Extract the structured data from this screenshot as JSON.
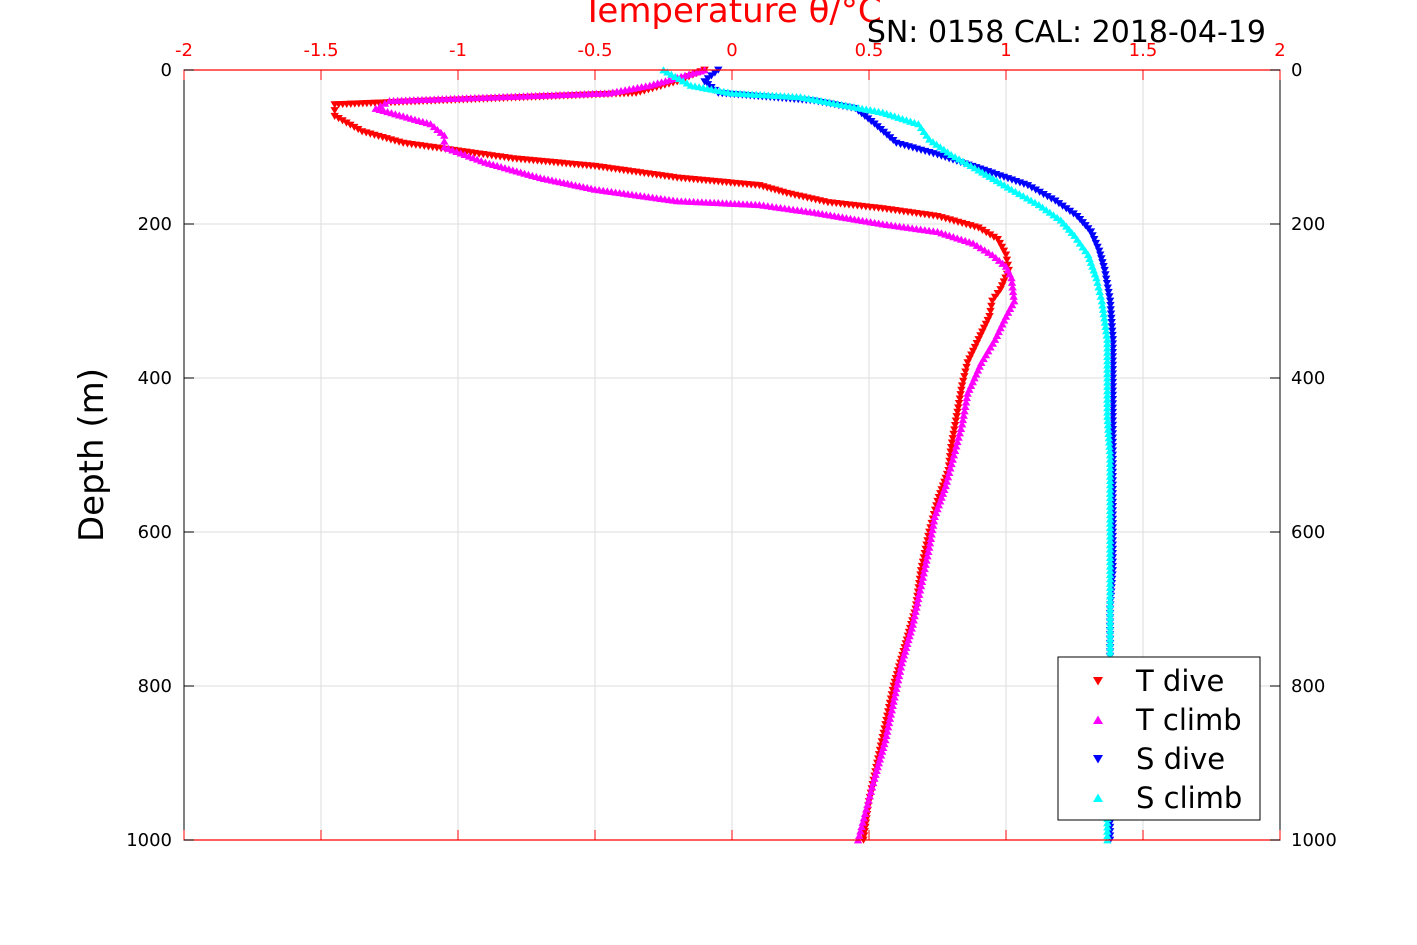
{
  "header": {
    "top_axis_title": "Temperature θ/°C",
    "y_axis_title": "Depth (m)",
    "serial_cal": "SN: 0158  CAL: 2018-04-19"
  },
  "colors": {
    "temperature_axis": "#ff0000",
    "t_dive": "#ff0000",
    "t_climb": "#ff00ff",
    "s_dive": "#0000ff",
    "s_climb": "#00ffff",
    "grid": "#dddddd"
  },
  "chart_data": {
    "type": "scatter",
    "x_axis": {
      "label": "Temperature θ/°C",
      "position": "top",
      "range": [
        -2,
        2
      ],
      "ticks": [
        -2,
        -1.5,
        -1,
        -0.5,
        0,
        0.5,
        1,
        1.5,
        2
      ],
      "tick_labels": [
        "-2",
        "-1.5",
        "-1",
        "-0.5",
        "0",
        "0.5",
        "1",
        "1.5",
        "2"
      ]
    },
    "y_axis": {
      "label": "Depth (m)",
      "range": [
        0,
        1000
      ],
      "reversed": true,
      "ticks": [
        0,
        200,
        400,
        600,
        800,
        1000
      ],
      "tick_labels": [
        "0",
        "200",
        "400",
        "600",
        "800",
        "1000"
      ],
      "mirrored_right": true
    },
    "grid": true,
    "legend_position": "bottom-right",
    "series": [
      {
        "name": "T dive",
        "color": "#ff0000",
        "marker": "triangle-down",
        "points": [
          [
            -0.1,
            0
          ],
          [
            -0.2,
            15
          ],
          [
            -0.35,
            30
          ],
          [
            -1.45,
            45
          ],
          [
            -1.45,
            60
          ],
          [
            -1.35,
            80
          ],
          [
            -1.2,
            95
          ],
          [
            -1.0,
            105
          ],
          [
            -0.8,
            115
          ],
          [
            -0.5,
            125
          ],
          [
            -0.2,
            140
          ],
          [
            0.1,
            150
          ],
          [
            0.2,
            160
          ],
          [
            0.35,
            172
          ],
          [
            0.55,
            180
          ],
          [
            0.75,
            190
          ],
          [
            0.9,
            205
          ],
          [
            0.97,
            220
          ],
          [
            1.0,
            240
          ],
          [
            1.01,
            260
          ],
          [
            0.98,
            285
          ],
          [
            0.95,
            300
          ],
          [
            0.94,
            320
          ],
          [
            0.9,
            350
          ],
          [
            0.86,
            380
          ],
          [
            0.84,
            410
          ],
          [
            0.82,
            450
          ],
          [
            0.8,
            490
          ],
          [
            0.79,
            520
          ],
          [
            0.75,
            560
          ],
          [
            0.72,
            600
          ],
          [
            0.69,
            650
          ],
          [
            0.67,
            700
          ],
          [
            0.63,
            750
          ],
          [
            0.59,
            800
          ],
          [
            0.56,
            850
          ],
          [
            0.53,
            900
          ],
          [
            0.5,
            950
          ],
          [
            0.48,
            1000
          ]
        ]
      },
      {
        "name": "T climb",
        "color": "#ff00ff",
        "marker": "triangle-up",
        "points": [
          [
            -0.1,
            0
          ],
          [
            -0.3,
            20
          ],
          [
            -0.45,
            30
          ],
          [
            -1.25,
            40
          ],
          [
            -1.3,
            50
          ],
          [
            -1.2,
            60
          ],
          [
            -1.1,
            70
          ],
          [
            -1.05,
            85
          ],
          [
            -1.05,
            100
          ],
          [
            -0.9,
            120
          ],
          [
            -0.7,
            140
          ],
          [
            -0.5,
            155
          ],
          [
            -0.2,
            170
          ],
          [
            0.1,
            175
          ],
          [
            0.3,
            185
          ],
          [
            0.55,
            200
          ],
          [
            0.75,
            210
          ],
          [
            0.88,
            225
          ],
          [
            0.95,
            240
          ],
          [
            1.0,
            255
          ],
          [
            1.02,
            270
          ],
          [
            1.03,
            300
          ],
          [
            1.0,
            320
          ],
          [
            0.96,
            350
          ],
          [
            0.91,
            380
          ],
          [
            0.86,
            420
          ],
          [
            0.84,
            460
          ],
          [
            0.81,
            500
          ],
          [
            0.78,
            540
          ],
          [
            0.74,
            580
          ],
          [
            0.72,
            620
          ],
          [
            0.69,
            670
          ],
          [
            0.66,
            720
          ],
          [
            0.62,
            770
          ],
          [
            0.59,
            820
          ],
          [
            0.56,
            870
          ],
          [
            0.52,
            920
          ],
          [
            0.49,
            960
          ],
          [
            0.46,
            1000
          ]
        ]
      },
      {
        "name": "S dive",
        "color": "#0000ff",
        "marker": "triangle-down",
        "points": [
          [
            -0.05,
            0
          ],
          [
            -0.1,
            15
          ],
          [
            -0.05,
            30
          ],
          [
            0.3,
            40
          ],
          [
            0.45,
            50
          ],
          [
            0.52,
            70
          ],
          [
            0.6,
            95
          ],
          [
            0.75,
            110
          ],
          [
            0.92,
            130
          ],
          [
            1.08,
            150
          ],
          [
            1.18,
            170
          ],
          [
            1.26,
            190
          ],
          [
            1.31,
            210
          ],
          [
            1.34,
            235
          ],
          [
            1.36,
            260
          ],
          [
            1.38,
            300
          ],
          [
            1.39,
            350
          ],
          [
            1.39,
            400
          ],
          [
            1.39,
            450
          ],
          [
            1.39,
            500
          ],
          [
            1.39,
            550
          ],
          [
            1.39,
            600
          ],
          [
            1.39,
            650
          ],
          [
            1.38,
            700
          ],
          [
            1.38,
            750
          ],
          [
            1.38,
            800
          ],
          [
            1.38,
            850
          ],
          [
            1.38,
            900
          ],
          [
            1.38,
            950
          ],
          [
            1.38,
            1000
          ]
        ]
      },
      {
        "name": "S climb",
        "color": "#00ffff",
        "marker": "triangle-up",
        "points": [
          [
            -0.25,
            0
          ],
          [
            -0.15,
            20
          ],
          [
            0.0,
            30
          ],
          [
            0.25,
            35
          ],
          [
            0.4,
            45
          ],
          [
            0.55,
            55
          ],
          [
            0.68,
            70
          ],
          [
            0.72,
            90
          ],
          [
            0.8,
            110
          ],
          [
            0.9,
            130
          ],
          [
            1.02,
            155
          ],
          [
            1.12,
            175
          ],
          [
            1.2,
            195
          ],
          [
            1.25,
            215
          ],
          [
            1.3,
            240
          ],
          [
            1.33,
            270
          ],
          [
            1.35,
            300
          ],
          [
            1.37,
            350
          ],
          [
            1.37,
            400
          ],
          [
            1.37,
            450
          ],
          [
            1.38,
            500
          ],
          [
            1.38,
            550
          ],
          [
            1.38,
            600
          ],
          [
            1.38,
            650
          ],
          [
            1.38,
            700
          ],
          [
            1.38,
            750
          ],
          [
            1.38,
            800
          ],
          [
            1.38,
            850
          ],
          [
            1.37,
            900
          ],
          [
            1.37,
            950
          ],
          [
            1.37,
            1000
          ]
        ]
      }
    ]
  }
}
